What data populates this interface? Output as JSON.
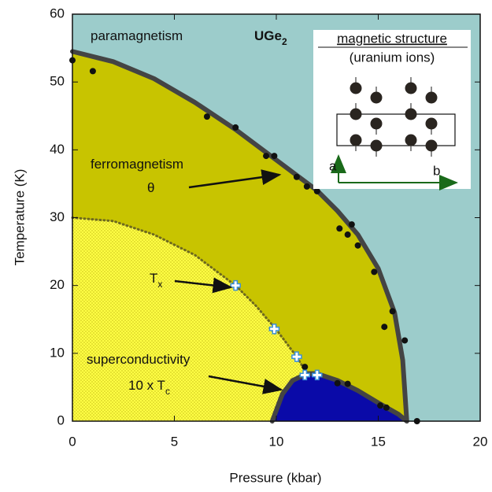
{
  "chart_data": {
    "type": "scatter",
    "xlabel": "Pressure (kbar)",
    "ylabel": "Temperature (K)",
    "xlim": [
      0,
      20
    ],
    "ylim": [
      0,
      60
    ],
    "xticks": [
      0,
      5,
      10,
      15,
      20
    ],
    "yticks": [
      0,
      10,
      20,
      30,
      40,
      50,
      60
    ],
    "background": "#9ccccb",
    "series": [
      {
        "style": "line",
        "color": "#444444",
        "fill": "#c8c400",
        "x": [
          0,
          2,
          4,
          6,
          8,
          10,
          12,
          13,
          14,
          15,
          15.8,
          16.2,
          16.4
        ],
        "values": [
          54.5,
          53,
          50.5,
          47,
          43,
          38.5,
          34,
          31,
          27.5,
          22.5,
          16,
          9,
          0
        ]
      },
      {
        "style": "dotted",
        "color": "#6e6a1e",
        "fill": "#ffff44",
        "x": [
          0,
          2,
          4,
          6,
          8,
          9,
          10,
          11,
          11.5
        ],
        "values": [
          30,
          29.5,
          27.5,
          24.5,
          20,
          17,
          13.5,
          9.5,
          7
        ]
      },
      {
        "style": "line",
        "color": "#444444",
        "fill": "#0a0aa8",
        "x": [
          9.8,
          10.3,
          10.8,
          11.5,
          12,
          13,
          14,
          15,
          16,
          16.4
        ],
        "values": [
          0,
          4,
          6,
          7,
          7,
          6,
          4.5,
          2.7,
          1,
          0
        ]
      },
      {
        "style": "markers",
        "marker": "dot",
        "color": "#111111",
        "x": [
          0,
          1,
          6.6,
          8,
          9.5,
          9.9,
          11,
          11.5,
          12,
          13.1,
          13.5,
          13.7,
          14,
          14.8,
          15.3,
          15.7,
          16.3,
          16.9,
          11.4,
          13,
          13.5,
          15.1,
          15.4
        ],
        "values": [
          53.2,
          51.6,
          44.9,
          43.3,
          39.1,
          39.1,
          36,
          34.6,
          33.9,
          28.4,
          27.5,
          29,
          25.9,
          22,
          13.9,
          16.2,
          11.9,
          0,
          8,
          5.6,
          5.5,
          2.3,
          2
        ]
      },
      {
        "style": "markers",
        "marker": "cross",
        "color": "#3a8fd8",
        "x": [
          8,
          9.9,
          11,
          11.4,
          12
        ],
        "values": [
          20,
          13.6,
          9.5,
          6.8,
          6.8
        ]
      }
    ],
    "annotations": [
      {
        "text": "paramagnetism"
      },
      {
        "text": "UGe",
        "sub": "2"
      },
      {
        "text": "ferromagnetism"
      },
      {
        "text": "θ"
      },
      {
        "text": "T",
        "sub": "x"
      },
      {
        "text": "superconductivity"
      },
      {
        "text": "10 x T",
        "sub": "c"
      }
    ],
    "inset": {
      "title": "magnetic structure",
      "subtitle": "(uranium ions)",
      "axes": [
        "a",
        "b"
      ]
    }
  }
}
